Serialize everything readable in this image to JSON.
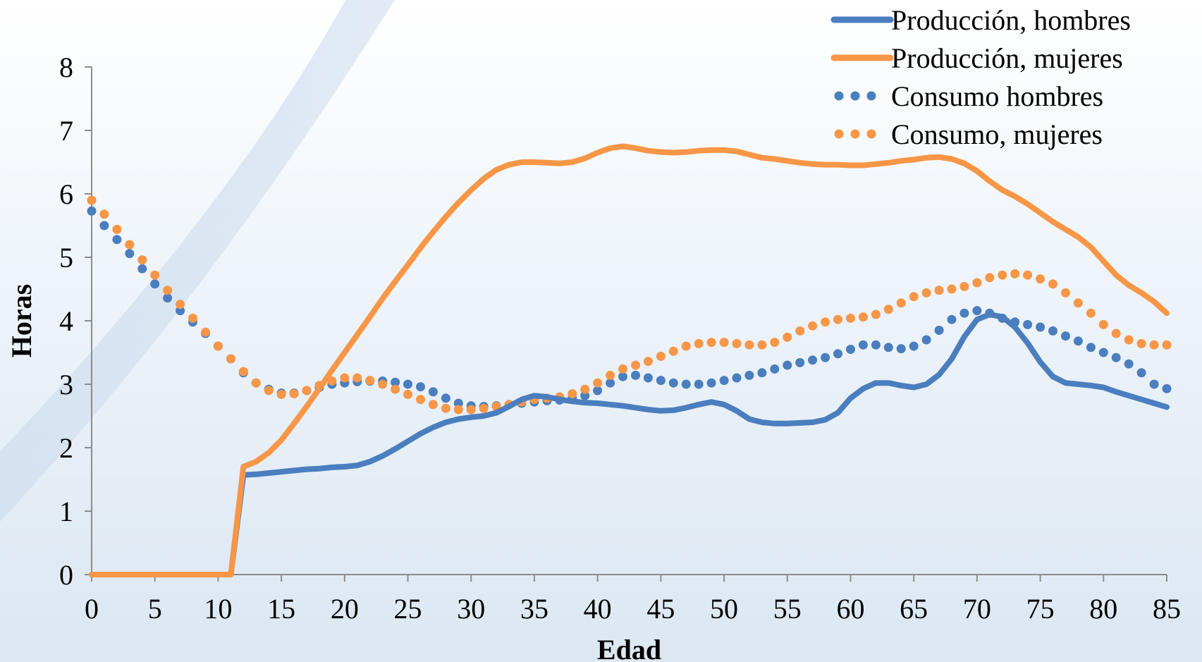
{
  "chart_data": {
    "type": "line",
    "title": "",
    "xlabel": "Edad",
    "ylabel": "Horas",
    "xlim": [
      0,
      85
    ],
    "ylim": [
      0,
      8
    ],
    "x_ticks": [
      "0",
      "5",
      "10",
      "15",
      "20",
      "25",
      "30",
      "35",
      "40",
      "45",
      "50",
      "55",
      "60",
      "65",
      "70",
      "75",
      "80",
      "85"
    ],
    "y_ticks": [
      "0",
      "1",
      "2",
      "3",
      "4",
      "5",
      "6",
      "7",
      "8"
    ],
    "grid": false,
    "legend_position": "top-right",
    "x": [
      0,
      1,
      2,
      3,
      4,
      5,
      6,
      7,
      8,
      9,
      10,
      11,
      12,
      13,
      14,
      15,
      16,
      17,
      18,
      19,
      20,
      21,
      22,
      23,
      24,
      25,
      26,
      27,
      28,
      29,
      30,
      31,
      32,
      33,
      34,
      35,
      36,
      37,
      38,
      39,
      40,
      41,
      42,
      43,
      44,
      45,
      46,
      47,
      48,
      49,
      50,
      51,
      52,
      53,
      54,
      55,
      56,
      57,
      58,
      59,
      60,
      61,
      62,
      63,
      64,
      65,
      66,
      67,
      68,
      69,
      70,
      71,
      72,
      73,
      74,
      75,
      76,
      77,
      78,
      79,
      80,
      81,
      82,
      83,
      84,
      85
    ],
    "series": [
      {
        "name": "Producción, hombres",
        "color": "#4a7ebf",
        "style": "solid",
        "values": [
          0,
          0,
          0,
          0,
          0,
          0,
          0,
          0,
          0,
          0,
          0,
          0,
          1.57,
          1.58,
          1.6,
          1.62,
          1.64,
          1.66,
          1.67,
          1.69,
          1.7,
          1.72,
          1.78,
          1.87,
          1.98,
          2.1,
          2.22,
          2.32,
          2.4,
          2.45,
          2.48,
          2.5,
          2.55,
          2.65,
          2.76,
          2.82,
          2.8,
          2.76,
          2.73,
          2.71,
          2.7,
          2.68,
          2.66,
          2.63,
          2.6,
          2.58,
          2.59,
          2.63,
          2.68,
          2.72,
          2.68,
          2.58,
          2.45,
          2.4,
          2.38,
          2.38,
          2.39,
          2.4,
          2.44,
          2.55,
          2.78,
          2.93,
          3.02,
          3.02,
          2.98,
          2.95,
          3.0,
          3.15,
          3.4,
          3.75,
          4.02,
          4.1,
          4.06,
          3.9,
          3.65,
          3.35,
          3.12,
          3.02,
          3.0,
          2.98,
          2.95,
          2.88,
          2.82,
          2.76,
          2.7,
          2.64
        ]
      },
      {
        "name": "Producción, mujeres",
        "color": "#f79646",
        "style": "solid",
        "values": [
          0,
          0,
          0,
          0,
          0,
          0,
          0,
          0,
          0,
          0,
          0,
          0,
          1.7,
          1.78,
          1.92,
          2.12,
          2.38,
          2.65,
          2.93,
          3.22,
          3.5,
          3.78,
          4.06,
          4.35,
          4.62,
          4.88,
          5.15,
          5.4,
          5.64,
          5.86,
          6.06,
          6.24,
          6.38,
          6.46,
          6.5,
          6.5,
          6.49,
          6.48,
          6.5,
          6.56,
          6.65,
          6.72,
          6.75,
          6.72,
          6.68,
          6.66,
          6.65,
          6.66,
          6.68,
          6.69,
          6.69,
          6.67,
          6.62,
          6.57,
          6.55,
          6.52,
          6.49,
          6.47,
          6.46,
          6.46,
          6.45,
          6.45,
          6.47,
          6.49,
          6.52,
          6.54,
          6.57,
          6.58,
          6.55,
          6.48,
          6.36,
          6.2,
          6.06,
          5.96,
          5.84,
          5.7,
          5.56,
          5.44,
          5.32,
          5.16,
          4.94,
          4.72,
          4.56,
          4.44,
          4.3,
          4.12
        ]
      },
      {
        "name": "Consumo hombres",
        "color": "#4a7ebf",
        "style": "dotted",
        "values": [
          5.73,
          5.5,
          5.28,
          5.06,
          4.82,
          4.58,
          4.36,
          4.16,
          3.98,
          3.8,
          3.6,
          3.4,
          3.18,
          3.02,
          2.92,
          2.86,
          2.86,
          2.9,
          2.95,
          3.0,
          3.02,
          3.04,
          3.05,
          3.05,
          3.03,
          3.0,
          2.96,
          2.88,
          2.78,
          2.7,
          2.66,
          2.65,
          2.66,
          2.68,
          2.7,
          2.72,
          2.74,
          2.75,
          2.78,
          2.82,
          2.9,
          3.02,
          3.12,
          3.14,
          3.1,
          3.06,
          3.02,
          3.0,
          3.0,
          3.02,
          3.06,
          3.1,
          3.14,
          3.18,
          3.24,
          3.3,
          3.34,
          3.38,
          3.42,
          3.48,
          3.55,
          3.62,
          3.62,
          3.58,
          3.56,
          3.6,
          3.7,
          3.85,
          4.02,
          4.12,
          4.16,
          4.12,
          4.04,
          3.98,
          3.94,
          3.9,
          3.84,
          3.76,
          3.68,
          3.58,
          3.5,
          3.42,
          3.32,
          3.18,
          3.0,
          2.93
        ]
      },
      {
        "name": "Consumo, mujeres",
        "color": "#f79646",
        "style": "dotted",
        "values": [
          5.9,
          5.68,
          5.44,
          5.2,
          4.96,
          4.72,
          4.48,
          4.26,
          4.04,
          3.82,
          3.6,
          3.4,
          3.2,
          3.02,
          2.9,
          2.84,
          2.85,
          2.9,
          2.98,
          3.05,
          3.1,
          3.1,
          3.06,
          3.0,
          2.92,
          2.84,
          2.76,
          2.68,
          2.62,
          2.6,
          2.6,
          2.62,
          2.65,
          2.68,
          2.72,
          2.76,
          2.78,
          2.8,
          2.85,
          2.92,
          3.02,
          3.14,
          3.24,
          3.3,
          3.36,
          3.44,
          3.52,
          3.6,
          3.64,
          3.66,
          3.66,
          3.64,
          3.62,
          3.62,
          3.66,
          3.74,
          3.84,
          3.92,
          3.98,
          4.02,
          4.04,
          4.06,
          4.1,
          4.18,
          4.28,
          4.38,
          4.44,
          4.48,
          4.5,
          4.54,
          4.6,
          4.68,
          4.72,
          4.74,
          4.72,
          4.66,
          4.58,
          4.44,
          4.28,
          4.12,
          3.94,
          3.8,
          3.7,
          3.64,
          3.62,
          3.62
        ]
      }
    ]
  }
}
